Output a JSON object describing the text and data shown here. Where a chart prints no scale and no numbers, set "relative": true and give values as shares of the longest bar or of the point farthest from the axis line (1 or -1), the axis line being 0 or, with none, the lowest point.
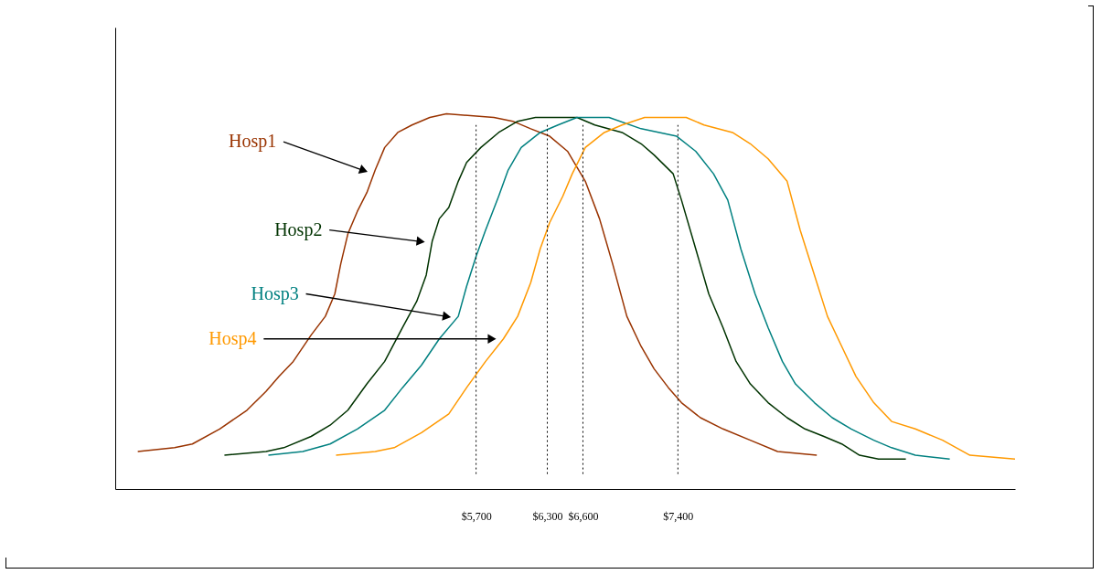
{
  "chart_data": {
    "type": "line",
    "relative": true,
    "legend": "top left",
    "line_style": "solid",
    "xlim": [
      2660,
      10240
    ],
    "xticks": [
      {
        "value": 5700,
        "label": "$5,700"
      },
      {
        "value": 6300,
        "label": "$6,300"
      },
      {
        "value": 6600,
        "label": "$6,600"
      },
      {
        "value": 7400,
        "label": "$7,400"
      }
    ],
    "series": [
      {
        "name": "Hosp1",
        "color": "#993300",
        "x": [
          2850,
          3160,
          3310,
          3540,
          3770,
          3930,
          4040,
          4160,
          4310,
          4430,
          4510,
          4560,
          4620,
          4700,
          4780,
          4850,
          4930,
          5040,
          5160,
          5310,
          5450,
          5850,
          6010,
          6160,
          6320,
          6470,
          6620,
          6740,
          6850,
          6970,
          7090,
          7200,
          7320,
          7430,
          7590,
          7780,
          8010,
          8240,
          8570
        ],
        "values": [
          0.1,
          0.11,
          0.12,
          0.16,
          0.21,
          0.26,
          0.3,
          0.34,
          0.41,
          0.46,
          0.52,
          0.6,
          0.68,
          0.74,
          0.79,
          0.85,
          0.91,
          0.95,
          0.97,
          0.99,
          1,
          0.99,
          0.98,
          0.96,
          0.94,
          0.9,
          0.82,
          0.72,
          0.6,
          0.46,
          0.38,
          0.32,
          0.27,
          0.23,
          0.19,
          0.16,
          0.13,
          0.1,
          0.09
        ]
      },
      {
        "name": "Hosp2",
        "color": "#003300",
        "x": [
          3580,
          3930,
          4080,
          4310,
          4470,
          4620,
          4780,
          4930,
          5080,
          5200,
          5280,
          5330,
          5390,
          5470,
          5550,
          5620,
          5740,
          5890,
          6050,
          6200,
          6550,
          6700,
          6930,
          7090,
          7200,
          7360,
          7430,
          7550,
          7660,
          7780,
          7890,
          8010,
          8160,
          8320,
          8470,
          8630,
          8780,
          8930,
          9090,
          9320
        ],
        "values": [
          0.09,
          0.1,
          0.11,
          0.14,
          0.17,
          0.21,
          0.28,
          0.34,
          0.43,
          0.5,
          0.57,
          0.66,
          0.72,
          0.75,
          0.82,
          0.87,
          0.91,
          0.95,
          0.98,
          0.99,
          0.99,
          0.97,
          0.95,
          0.92,
          0.89,
          0.84,
          0.77,
          0.64,
          0.52,
          0.43,
          0.34,
          0.28,
          0.23,
          0.19,
          0.16,
          0.14,
          0.12,
          0.09,
          0.08,
          0.08
        ]
      },
      {
        "name": "Hosp3",
        "color": "#008080",
        "x": [
          3950,
          4240,
          4470,
          4700,
          4930,
          5080,
          5240,
          5390,
          5550,
          5620,
          5700,
          5780,
          5890,
          5970,
          6080,
          6240,
          6390,
          6550,
          6820,
          7090,
          7390,
          7550,
          7700,
          7820,
          7930,
          8050,
          8160,
          8280,
          8390,
          8550,
          8700,
          8860,
          9050,
          9200,
          9400,
          9690
        ],
        "values": [
          0.09,
          0.1,
          0.12,
          0.16,
          0.21,
          0.27,
          0.33,
          0.4,
          0.46,
          0.54,
          0.62,
          0.69,
          0.78,
          0.85,
          0.91,
          0.95,
          0.97,
          0.99,
          0.99,
          0.96,
          0.94,
          0.9,
          0.84,
          0.77,
          0.64,
          0.52,
          0.43,
          0.34,
          0.28,
          0.23,
          0.19,
          0.16,
          0.13,
          0.11,
          0.09,
          0.08
        ]
      },
      {
        "name": "Hosp4",
        "color": "#ff9900",
        "x": [
          4520,
          4850,
          5010,
          5240,
          5470,
          5620,
          5780,
          5930,
          6050,
          6160,
          6240,
          6320,
          6430,
          6510,
          6620,
          6780,
          6930,
          7120,
          7470,
          7620,
          7860,
          8010,
          8160,
          8320,
          8430,
          8550,
          8660,
          8780,
          8900,
          9050,
          9200,
          9400,
          9630,
          9860,
          10240
        ],
        "values": [
          0.09,
          0.1,
          0.11,
          0.15,
          0.2,
          0.27,
          0.34,
          0.4,
          0.46,
          0.55,
          0.64,
          0.71,
          0.78,
          0.84,
          0.91,
          0.95,
          0.97,
          0.99,
          0.99,
          0.97,
          0.95,
          0.92,
          0.88,
          0.82,
          0.69,
          0.57,
          0.46,
          0.38,
          0.3,
          0.23,
          0.18,
          0.16,
          0.13,
          0.09,
          0.08
        ]
      }
    ],
    "ref_lines": [
      {
        "axis": "x",
        "value": 5700,
        "color": "#000000",
        "line_style": "dotted"
      },
      {
        "axis": "x",
        "value": 6300,
        "color": "#000000",
        "line_style": "dotted"
      },
      {
        "axis": "x",
        "value": 6600,
        "color": "#000000",
        "line_style": "dotted"
      },
      {
        "axis": "x",
        "value": 7400,
        "color": "#000000",
        "line_style": "dotted"
      }
    ]
  }
}
